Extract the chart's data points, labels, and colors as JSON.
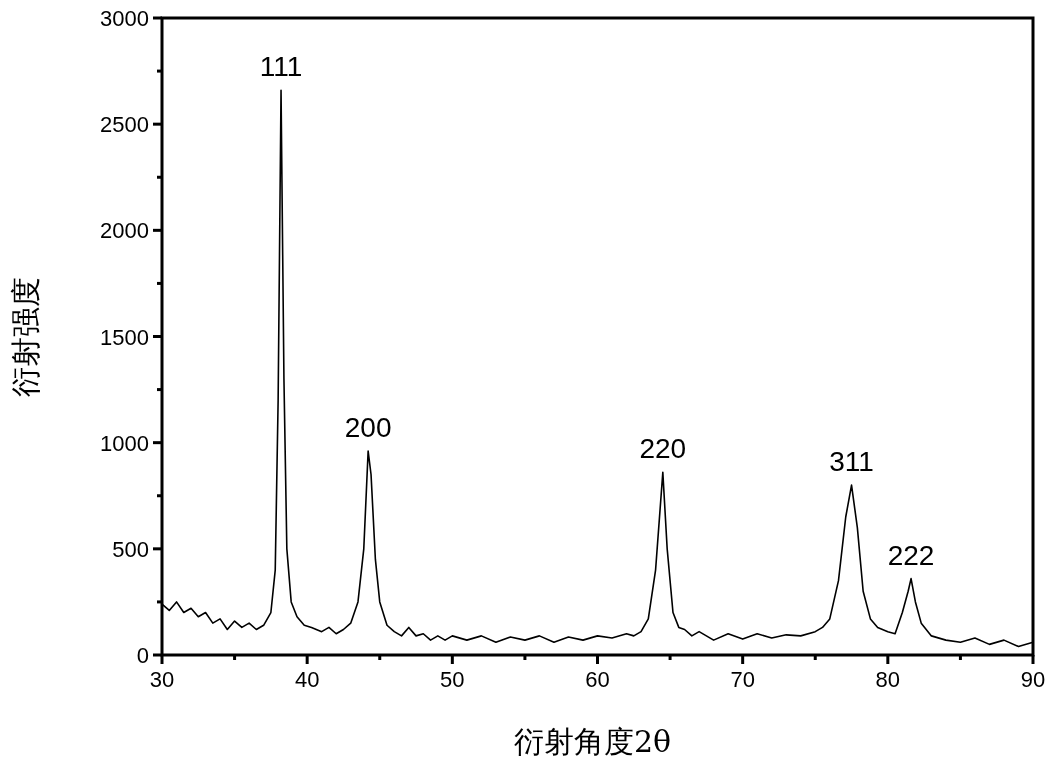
{
  "chart_data": {
    "type": "line",
    "xlabel": "衍射角度2θ",
    "ylabel": "衍射强度",
    "xlim": [
      30,
      90
    ],
    "ylim": [
      0,
      3000
    ],
    "xticks": [
      30,
      {
        "value": 35,
        "label": null
      },
      40,
      {
        "value": 45,
        "label": null
      },
      50,
      {
        "value": 55,
        "label": null
      },
      60,
      {
        "value": 65,
        "label": null
      },
      70,
      {
        "value": 75,
        "label": null
      },
      80,
      {
        "value": 85,
        "label": null
      },
      90
    ],
    "yticks": [
      0,
      {
        "value": 250,
        "label": null
      },
      500,
      {
        "value": 750,
        "label": null
      },
      1000,
      {
        "value": 1250,
        "label": null
      },
      1500,
      {
        "value": 1750,
        "label": null
      },
      2000,
      {
        "value": 2250,
        "label": null
      },
      2500,
      {
        "value": 2750,
        "label": null
      },
      3000
    ],
    "series": [
      {
        "color": "#000000",
        "x": [
          30,
          30.5,
          31,
          31.5,
          32,
          32.5,
          33,
          33.5,
          34,
          34.5,
          35,
          35.5,
          36,
          36.5,
          37,
          37.5,
          37.8,
          38.0,
          38.2,
          38.4,
          38.6,
          38.9,
          39.3,
          39.8,
          40.3,
          41,
          41.5,
          42,
          42.5,
          43,
          43.5,
          43.9,
          44.2,
          44.4,
          44.7,
          45,
          45.5,
          46,
          46.5,
          47,
          47.5,
          48,
          48.5,
          49,
          49.5,
          50,
          51,
          52,
          53,
          54,
          55,
          56,
          57,
          58,
          59,
          60,
          61,
          62,
          62.5,
          63,
          63.5,
          64,
          64.5,
          64.8,
          65.2,
          65.6,
          66,
          66.5,
          67,
          68,
          69,
          70,
          71,
          72,
          73,
          74,
          75,
          75.5,
          76,
          76.6,
          77.1,
          77.5,
          77.9,
          78.3,
          78.8,
          79.3,
          80,
          80.5,
          81,
          81.4,
          81.6,
          81.9,
          82.3,
          83,
          84,
          85,
          86,
          87,
          88,
          89,
          90
        ],
        "values": [
          240,
          210,
          250,
          200,
          220,
          180,
          200,
          150,
          170,
          120,
          160,
          130,
          150,
          120,
          140,
          200,
          400,
          1200,
          2660,
          1300,
          500,
          250,
          180,
          140,
          130,
          110,
          130,
          100,
          120,
          150,
          250,
          500,
          960,
          850,
          450,
          250,
          140,
          110,
          90,
          130,
          90,
          100,
          70,
          90,
          70,
          90,
          70,
          90,
          60,
          85,
          70,
          90,
          60,
          85,
          70,
          90,
          80,
          100,
          90,
          110,
          170,
          400,
          860,
          500,
          200,
          130,
          120,
          90,
          110,
          70,
          100,
          75,
          100,
          80,
          95,
          90,
          110,
          130,
          170,
          350,
          650,
          800,
          600,
          300,
          170,
          130,
          110,
          100,
          200,
          300,
          360,
          250,
          150,
          90,
          70,
          60,
          80,
          50,
          70,
          40,
          60
        ]
      }
    ],
    "annotations": [
      {
        "text": "111",
        "x": 38.2,
        "y": 2660
      },
      {
        "text": "200",
        "x": 44.2,
        "y": 960
      },
      {
        "text": "220",
        "x": 64.5,
        "y": 860
      },
      {
        "text": "311",
        "x": 77.5,
        "y": 800
      },
      {
        "text": "222",
        "x": 81.6,
        "y": 360
      }
    ]
  }
}
